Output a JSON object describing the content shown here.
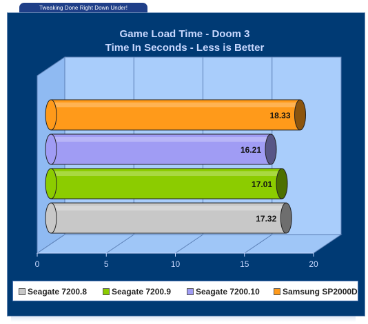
{
  "banner": {
    "text": "Tweaking Done Right Down Under!"
  },
  "chart_data": {
    "type": "bar",
    "orientation": "horizontal",
    "title": "Game Load Time - Doom 3",
    "subtitle": "Time In Seconds - Less is Better",
    "categories": [
      "Seagate 7200.8",
      "Seagate 7200.9",
      "Seagate 7200.10",
      "Samsung SP2000D"
    ],
    "values": [
      17.32,
      17.01,
      16.21,
      18.33
    ],
    "value_labels": [
      "17.32",
      "17.01",
      "16.21",
      "18.33"
    ],
    "colors": [
      "#c8c8c8",
      "#8ccc00",
      "#a09cf4",
      "#ff9a1a"
    ],
    "xlim": [
      0,
      20
    ],
    "xticks": [
      "0",
      "5",
      "10",
      "15",
      "20"
    ],
    "grid": true,
    "legend_position": "bottom"
  }
}
